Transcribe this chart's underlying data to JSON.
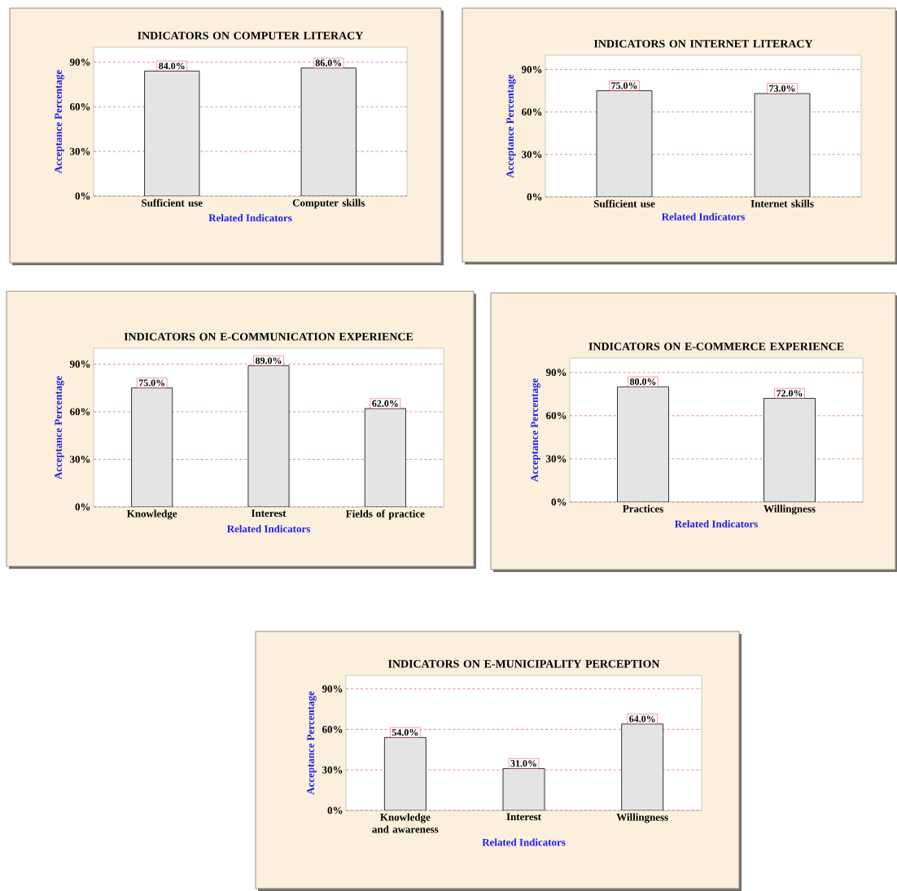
{
  "chart_data": [
    {
      "type": "bar",
      "title": "INDICATORS ON COMPUTER LITERACY",
      "xlabel": "Related Indicators",
      "ylabel": "Acceptance Percentage",
      "categories": [
        "Sufficient use",
        "Computer skills"
      ],
      "values": [
        84,
        86
      ],
      "value_labels": [
        "84.0%",
        "86.0%"
      ],
      "color": "#e4e4e4",
      "ylim": [
        0,
        100
      ],
      "yticks": [
        {
          "value": 0,
          "label": "0%"
        },
        {
          "value": 30,
          "label": "30%"
        },
        {
          "value": 60,
          "label": "60%"
        },
        {
          "value": 90,
          "label": "90%"
        }
      ],
      "grid": "y"
    },
    {
      "type": "bar",
      "title": "INDICATORS ON INTERNET LITERACY",
      "xlabel": "Related Indicators",
      "ylabel": "Acceptance Percentage",
      "categories": [
        "Sufficient use",
        "Internet skills"
      ],
      "values": [
        75,
        73
      ],
      "value_labels": [
        "75.0%",
        "73.0%"
      ],
      "color": "#e4e4e4",
      "ylim": [
        0,
        100
      ],
      "yticks": [
        {
          "value": 0,
          "label": "0%"
        },
        {
          "value": 30,
          "label": "30%"
        },
        {
          "value": 60,
          "label": "60%"
        },
        {
          "value": 90,
          "label": "90%"
        }
      ],
      "grid": "y"
    },
    {
      "type": "bar",
      "title": "INDICATORS ON E-COMMUNICATION EXPERIENCE",
      "xlabel": "Related Indicators",
      "ylabel": "Acceptance Percentage",
      "categories": [
        "Knowledge",
        "Interest",
        "Fields of practice"
      ],
      "values": [
        75,
        89,
        62
      ],
      "value_labels": [
        "75.0%",
        "89.0%",
        "62.0%"
      ],
      "color": "#e4e4e4",
      "ylim": [
        0,
        100
      ],
      "yticks": [
        {
          "value": 0,
          "label": "0%"
        },
        {
          "value": 30,
          "label": "30%"
        },
        {
          "value": 60,
          "label": "60%"
        },
        {
          "value": 90,
          "label": "90%"
        }
      ],
      "grid": "y"
    },
    {
      "type": "bar",
      "title": "INDICATORS ON E-COMMERCE EXPERIENCE",
      "xlabel": "Related Indicators",
      "ylabel": "Acceptance Percentage",
      "categories": [
        "Practices",
        "Willingness"
      ],
      "values": [
        80,
        72
      ],
      "value_labels": [
        "80.0%",
        "72.0%"
      ],
      "color": "#e4e4e4",
      "ylim": [
        0,
        100
      ],
      "yticks": [
        {
          "value": 0,
          "label": "0%"
        },
        {
          "value": 30,
          "label": "30%"
        },
        {
          "value": 60,
          "label": "60%"
        },
        {
          "value": 90,
          "label": "90%"
        }
      ],
      "grid": "y"
    },
    {
      "type": "bar",
      "title": "INDICATORS ON E-MUNICIPALITY PERCEPTION",
      "xlabel": "Related Indicators",
      "ylabel": "Acceptance Percentage",
      "categories": [
        "Knowledge and awareness",
        "Interest",
        "Willingness"
      ],
      "values": [
        54,
        31,
        64
      ],
      "value_labels": [
        "54.0%",
        "31.0%",
        "64.0%"
      ],
      "color": "#e4e4e4",
      "ylim": [
        0,
        100
      ],
      "yticks": [
        {
          "value": 0,
          "label": "0%"
        },
        {
          "value": 30,
          "label": "30%"
        },
        {
          "value": 60,
          "label": "60%"
        },
        {
          "value": 90,
          "label": "90%"
        }
      ],
      "grid": "y"
    }
  ]
}
